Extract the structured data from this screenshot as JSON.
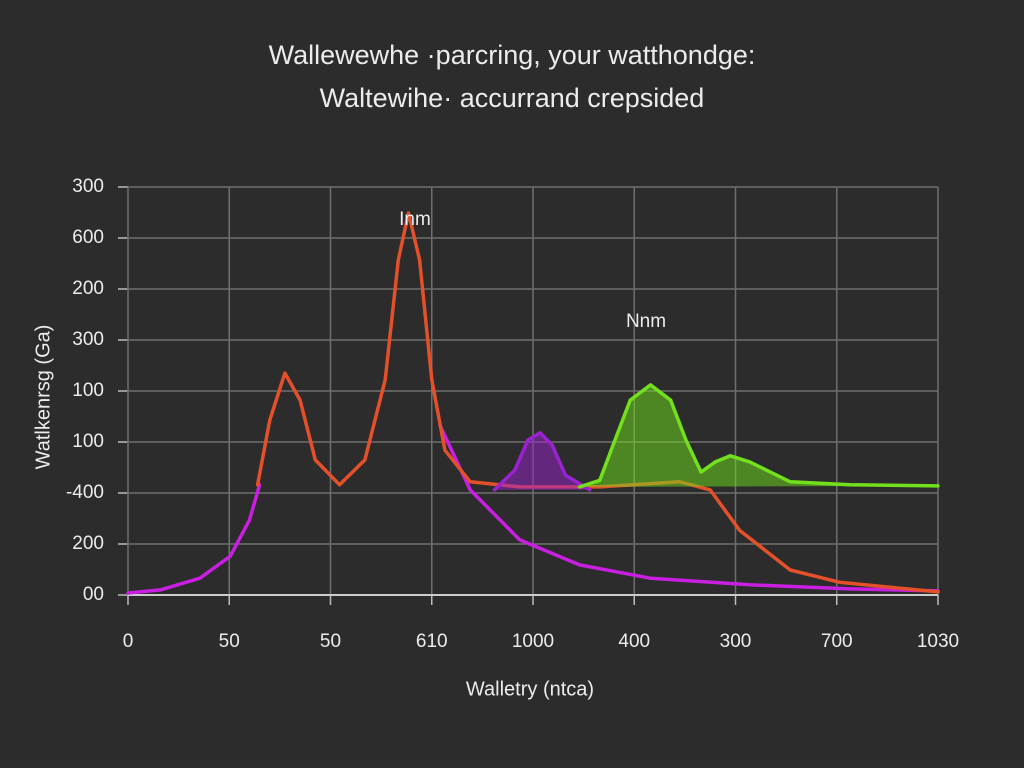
{
  "chart_data": {
    "type": "line",
    "title": "Wallewewhe ·parcring, your watthondge:",
    "subtitle": "Waltewihe· accurrand crepsided",
    "xlabel": "Walletry (ntca)",
    "ylabel": "Watlkenrsg (Ga)",
    "annotations": [
      "Inm",
      "Nnm"
    ],
    "grid": true,
    "xlim": [
      0,
      8
    ],
    "ylim": [
      0,
      8
    ],
    "xticks": [
      {
        "value": 0,
        "label": "0"
      },
      {
        "value": 1,
        "label": "50"
      },
      {
        "value": 2,
        "label": "50"
      },
      {
        "value": 3,
        "label": "610"
      },
      {
        "value": 4,
        "label": "1000"
      },
      {
        "value": 5,
        "label": "400"
      },
      {
        "value": 6,
        "label": "300"
      },
      {
        "value": 7,
        "label": "700"
      },
      {
        "value": 8,
        "label": "1030"
      }
    ],
    "yticks": [
      {
        "value": 0,
        "label": "00"
      },
      {
        "value": 1,
        "label": "200"
      },
      {
        "value": 2,
        "label": "-400"
      },
      {
        "value": 3,
        "label": "100"
      },
      {
        "value": 4,
        "label": "100"
      },
      {
        "value": 5,
        "label": "300"
      },
      {
        "value": 6,
        "label": "200"
      },
      {
        "value": 7,
        "label": "600"
      },
      {
        "value": 8,
        "label": "300"
      }
    ],
    "series": [
      {
        "color": "#c81fe0",
        "fill": false,
        "x": [
          0,
          0.32,
          0.71,
          1.01,
          1.2,
          1.3,
          2.0,
          3.08,
          3.38,
          3.87,
          4.46,
          5.16,
          6.14,
          7.13,
          8.0
        ],
        "values": [
          0.04,
          0.1,
          0.33,
          0.76,
          1.47,
          2.16,
          null,
          3.33,
          2.06,
          1.08,
          0.59,
          0.33,
          0.2,
          0.12,
          0.08
        ]
      },
      {
        "color": "#e4502a",
        "fill": false,
        "x": [
          1.28,
          1.4,
          1.55,
          1.7,
          1.85,
          2.09,
          2.34,
          2.54,
          2.67,
          2.77,
          2.88,
          3.0,
          3.13,
          3.38,
          3.87,
          4.66,
          5.45,
          5.75,
          6.04,
          6.54,
          7.03,
          8.0
        ],
        "values": [
          2.16,
          3.43,
          4.35,
          3.82,
          2.65,
          2.16,
          2.65,
          4.22,
          6.57,
          7.49,
          6.57,
          4.22,
          2.84,
          2.22,
          2.12,
          2.12,
          2.22,
          2.06,
          1.27,
          0.49,
          0.25,
          0.06
        ]
      },
      {
        "color": "#9a22d0",
        "fill": true,
        "x": [
          3.62,
          3.82,
          3.95,
          4.07,
          4.19,
          4.32,
          4.56
        ],
        "values": [
          2.06,
          2.45,
          3.04,
          3.18,
          2.94,
          2.35,
          2.06
        ]
      },
      {
        "color": "#72e01c",
        "fill": true,
        "x": [
          4.46,
          4.66,
          4.81,
          4.96,
          5.16,
          5.36,
          5.51,
          5.66,
          5.8,
          5.95,
          6.14,
          6.54,
          7.13,
          8.0
        ],
        "values": [
          2.12,
          2.25,
          3.04,
          3.82,
          4.12,
          3.82,
          3.04,
          2.41,
          2.61,
          2.73,
          2.61,
          2.22,
          2.16,
          2.14
        ]
      }
    ]
  }
}
